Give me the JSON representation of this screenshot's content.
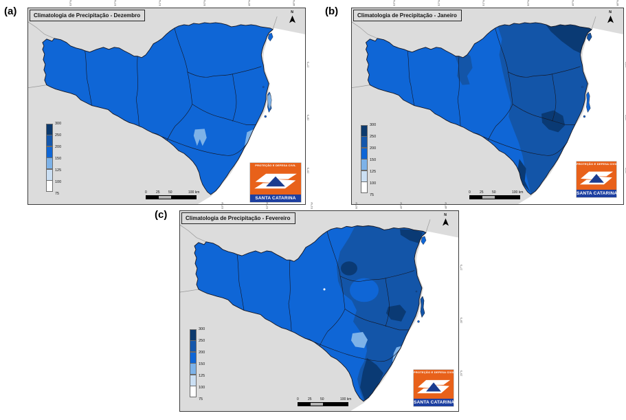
{
  "figure": {
    "panels": [
      {
        "label": "(a)",
        "title": "Climatologia de Precipitação - Dezembro"
      },
      {
        "label": "(b)",
        "title": "Climatologia de Precipitação - Janeiro"
      },
      {
        "label": "(c)",
        "title": "Climatologia de Precipitação - Fevereiro"
      }
    ]
  },
  "map": {
    "state": "Santa Catarina",
    "north_arrow_label": "N",
    "colors": {
      "background": "#dcdcdc",
      "ocean": "#ffffff",
      "main": "#0f66d6",
      "dark": "#1355a8",
      "darkest": "#0a3a74",
      "light": "#7db2e8",
      "lighter": "#cbdff3",
      "white": "#ffffff",
      "border_line": "#15151f",
      "neighbor_line": "#999999"
    },
    "legend": {
      "labels": [
        "300",
        "250",
        "200",
        "150",
        "125",
        "100",
        "75"
      ],
      "segment_colors": [
        "#0c3a6e",
        "#1457ac",
        "#0f66d6",
        "#7db2e8",
        "#cbdff3",
        "#ffffff"
      ]
    },
    "scalebar": {
      "labels": [
        "0",
        "25",
        "50",
        "100 km"
      ],
      "segment_colors": [
        "#000000",
        "#b3b3b3",
        "#000000"
      ]
    },
    "axis_ticks": {
      "top": [
        "53°W",
        "52°W",
        "51°W",
        "50°W",
        "49°W",
        "48°W"
      ],
      "right": [
        "27°S",
        "28°S",
        "29°S"
      ]
    },
    "logo": {
      "top_text": "PROTEÇÃO E DEFESA CIVIL",
      "bottom_text": "SANTA CATARINA",
      "orange": "#e8611a",
      "banner_blue": "#1d3fa0",
      "triangle_blue": "#1b3c8f"
    }
  },
  "chart_data": {
    "type": "heatmap",
    "subtype": "choropleth-precipitation-climatology",
    "region": "Santa Catarina, Brazil",
    "scale_breaks_mm": [
      75,
      100,
      125,
      150,
      200,
      250,
      300
    ],
    "maps": [
      {
        "month": "Dezembro",
        "pattern": "nearly uniform 150-200 mm statewide; small 100-150 mm patches in the south-central area and on the southeast coast"
      },
      {
        "month": "Janeiro",
        "pattern": "west 150-200 mm; eastern half 200-250 mm with 250-300 mm cores in the northeast and east-central coast"
      },
      {
        "month": "Fevereiro",
        "pattern": "west 150-200 mm; northeast and coastal south 200-250 mm with 250-300 mm cores; 75-125 mm patches in the south-central area and southeast coast"
      }
    ]
  }
}
